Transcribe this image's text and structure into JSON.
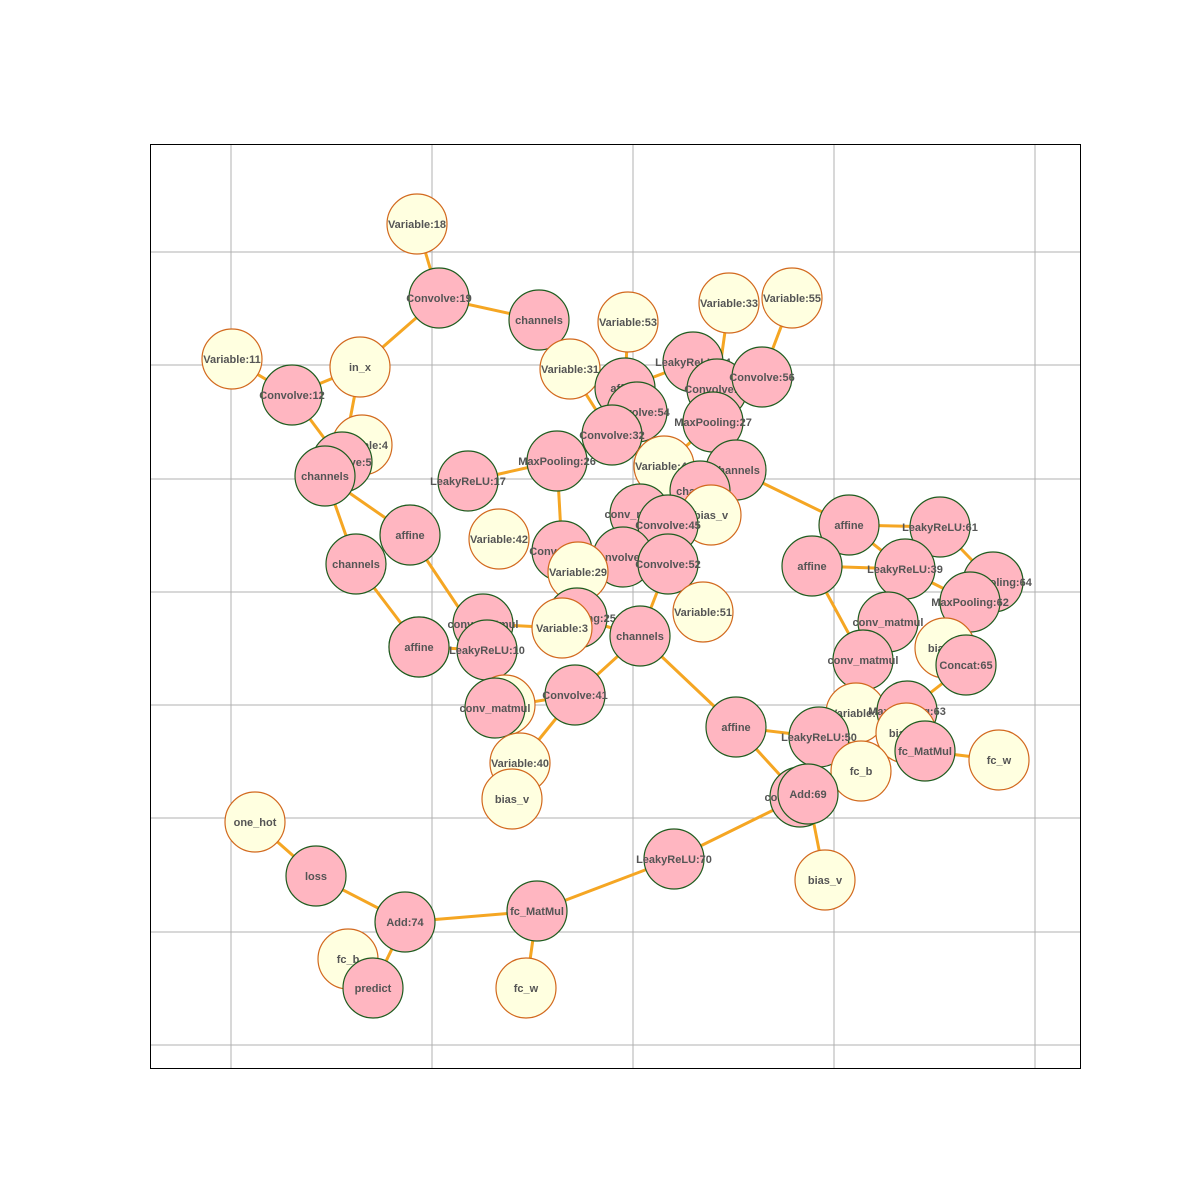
{
  "graph": {
    "colors": {
      "edge": "#f5a623",
      "op_fill": "#ffb6c1",
      "op_stroke": "#1e5c1e",
      "var_fill": "#ffffe0",
      "var_stroke": "#d2691e",
      "grid": "#b0b0b0",
      "frame": "#000000",
      "label": "#555555"
    },
    "node_kinds": [
      "op",
      "var"
    ],
    "nodes": [
      {
        "id": "v18",
        "label": "Variable:18",
        "kind": "var"
      },
      {
        "id": "c19",
        "label": "Convolve:19",
        "kind": "op"
      },
      {
        "id": "ch_a",
        "label": "channels",
        "kind": "op"
      },
      {
        "id": "inx",
        "label": "in_x",
        "kind": "var"
      },
      {
        "id": "v11",
        "label": "Variable:11",
        "kind": "var"
      },
      {
        "id": "c12",
        "label": "Convolve:12",
        "kind": "op"
      },
      {
        "id": "v4",
        "label": "Variable:4",
        "kind": "var"
      },
      {
        "id": "c5",
        "label": "Convolve:5",
        "kind": "op"
      },
      {
        "id": "ch_b",
        "label": "channels",
        "kind": "op"
      },
      {
        "id": "aff_a",
        "label": "affine",
        "kind": "op"
      },
      {
        "id": "ch_c",
        "label": "channels",
        "kind": "op"
      },
      {
        "id": "aff_b",
        "label": "affine",
        "kind": "op"
      },
      {
        "id": "lr17",
        "label": "LeakyReLU:17",
        "kind": "op"
      },
      {
        "id": "v42",
        "label": "Variable:42",
        "kind": "var"
      },
      {
        "id": "mp26",
        "label": "MaxPooling:26",
        "kind": "op"
      },
      {
        "id": "v53",
        "label": "Variable:53",
        "kind": "var"
      },
      {
        "id": "v31",
        "label": "Variable:31",
        "kind": "var"
      },
      {
        "id": "aff_c",
        "label": "affine",
        "kind": "op"
      },
      {
        "id": "c54",
        "label": "Convolve:54",
        "kind": "op"
      },
      {
        "id": "c32",
        "label": "Convolve:32",
        "kind": "op"
      },
      {
        "id": "v33",
        "label": "Variable:33",
        "kind": "var"
      },
      {
        "id": "v55",
        "label": "Variable:55",
        "kind": "var"
      },
      {
        "id": "lr24",
        "label": "LeakyReLU:24",
        "kind": "op"
      },
      {
        "id": "c34",
        "label": "Convolve:34",
        "kind": "op"
      },
      {
        "id": "c56",
        "label": "Convolve:56",
        "kind": "op"
      },
      {
        "id": "mp27",
        "label": "MaxPooling:27",
        "kind": "op"
      },
      {
        "id": "v44",
        "label": "Variable:44",
        "kind": "var"
      },
      {
        "id": "ch_d",
        "label": "channels",
        "kind": "op"
      },
      {
        "id": "ch_e",
        "label": "channels",
        "kind": "op"
      },
      {
        "id": "bias_a",
        "label": "bias_v",
        "kind": "var"
      },
      {
        "id": "cm_a",
        "label": "conv_matmul",
        "kind": "op"
      },
      {
        "id": "c45",
        "label": "Convolve:45",
        "kind": "op"
      },
      {
        "id": "c43",
        "label": "Convolve:43",
        "kind": "op"
      },
      {
        "id": "c30",
        "label": "Convolve:30",
        "kind": "op"
      },
      {
        "id": "c52",
        "label": "Convolve:52",
        "kind": "op"
      },
      {
        "id": "v29",
        "label": "Variable:29",
        "kind": "var"
      },
      {
        "id": "v51",
        "label": "Variable:51",
        "kind": "var"
      },
      {
        "id": "mp25",
        "label": "MaxPooling:25",
        "kind": "op"
      },
      {
        "id": "v3",
        "label": "Variable:3",
        "kind": "var"
      },
      {
        "id": "ch_f",
        "label": "channels",
        "kind": "op"
      },
      {
        "id": "cm_b",
        "label": "conv_matmul",
        "kind": "op"
      },
      {
        "id": "lr10",
        "label": "LeakyReLU:10",
        "kind": "op"
      },
      {
        "id": "aff_d",
        "label": "affine",
        "kind": "op"
      },
      {
        "id": "bias_b",
        "label": "bias_",
        "kind": "var"
      },
      {
        "id": "cm_c",
        "label": "conv_matmul",
        "kind": "op"
      },
      {
        "id": "c41",
        "label": "Convolve:41",
        "kind": "op"
      },
      {
        "id": "v40",
        "label": "Variable:40",
        "kind": "var"
      },
      {
        "id": "bias_c",
        "label": "bias_v",
        "kind": "var"
      },
      {
        "id": "aff_e",
        "label": "affine",
        "kind": "op"
      },
      {
        "id": "lr61",
        "label": "LeakyReLU:61",
        "kind": "op"
      },
      {
        "id": "aff_f",
        "label": "affine",
        "kind": "op"
      },
      {
        "id": "lr39",
        "label": "LeakyReLU:39",
        "kind": "op"
      },
      {
        "id": "mp64",
        "label": "MaxPooling:64",
        "kind": "op"
      },
      {
        "id": "mp62",
        "label": "MaxPooling:62",
        "kind": "op"
      },
      {
        "id": "cm_d",
        "label": "conv_matmul",
        "kind": "op"
      },
      {
        "id": "bias_d",
        "label": "bias_v",
        "kind": "var"
      },
      {
        "id": "cm_e",
        "label": "conv_matmul",
        "kind": "op"
      },
      {
        "id": "concat65",
        "label": "Concat:65",
        "kind": "op"
      },
      {
        "id": "vx",
        "label": "Variable:6",
        "kind": "var"
      },
      {
        "id": "mp63",
        "label": "MaxPooling:63",
        "kind": "op"
      },
      {
        "id": "bias_e",
        "label": "bias_v",
        "kind": "var"
      },
      {
        "id": "aff_g",
        "label": "affine",
        "kind": "op"
      },
      {
        "id": "lr50",
        "label": "LeakyReLU:50",
        "kind": "op"
      },
      {
        "id": "fcmm_a",
        "label": "fc_MatMul",
        "kind": "op"
      },
      {
        "id": "fcw_a",
        "label": "fc_w",
        "kind": "var"
      },
      {
        "id": "fcb_a",
        "label": "fc_b",
        "kind": "var"
      },
      {
        "id": "cm_f",
        "label": "conv_matmul",
        "kind": "op"
      },
      {
        "id": "add69",
        "label": "Add:69",
        "kind": "op"
      },
      {
        "id": "bias_f",
        "label": "bias_v",
        "kind": "var"
      },
      {
        "id": "lr70",
        "label": "LeakyReLU:70",
        "kind": "op"
      },
      {
        "id": "onehot",
        "label": "one_hot",
        "kind": "var"
      },
      {
        "id": "loss",
        "label": "loss",
        "kind": "op"
      },
      {
        "id": "add74",
        "label": "Add:74",
        "kind": "op"
      },
      {
        "id": "fcmm_b",
        "label": "fc_MatMul",
        "kind": "op"
      },
      {
        "id": "fcb_b",
        "label": "fc_b",
        "kind": "var"
      },
      {
        "id": "predict",
        "label": "predict",
        "kind": "op"
      },
      {
        "id": "fcw_b",
        "label": "fc_w",
        "kind": "var"
      }
    ],
    "edges": [
      [
        "v18",
        "c19"
      ],
      [
        "c19",
        "ch_a"
      ],
      [
        "c19",
        "inx"
      ],
      [
        "inx",
        "c12"
      ],
      [
        "v11",
        "c12"
      ],
      [
        "c12",
        "c5"
      ],
      [
        "inx",
        "c5"
      ],
      [
        "v4",
        "c5"
      ],
      [
        "c5",
        "ch_b"
      ],
      [
        "ch_b",
        "aff_a"
      ],
      [
        "ch_b",
        "ch_c"
      ],
      [
        "ch_c",
        "aff_b"
      ],
      [
        "aff_a",
        "lr10"
      ],
      [
        "aff_b",
        "lr10"
      ],
      [
        "lr17",
        "mp26"
      ],
      [
        "mp26",
        "c32"
      ],
      [
        "mp26",
        "c43"
      ],
      [
        "c43",
        "v29"
      ],
      [
        "v53",
        "aff_c"
      ],
      [
        "v31",
        "c32"
      ],
      [
        "aff_c",
        "lr24"
      ],
      [
        "c54",
        "c32"
      ],
      [
        "v33",
        "c34"
      ],
      [
        "v55",
        "c56"
      ],
      [
        "lr24",
        "c34"
      ],
      [
        "c56",
        "mp27"
      ],
      [
        "c34",
        "ch_d"
      ],
      [
        "mp27",
        "ch_d"
      ],
      [
        "v44",
        "mp27"
      ],
      [
        "ch_d",
        "ch_e"
      ],
      [
        "ch_e",
        "bias_a"
      ],
      [
        "ch_e",
        "cm_a"
      ],
      [
        "cm_a",
        "c45"
      ],
      [
        "c45",
        "c30"
      ],
      [
        "c30",
        "c52"
      ],
      [
        "c52",
        "ch_f"
      ],
      [
        "c30",
        "mp25"
      ],
      [
        "mp25",
        "v3"
      ],
      [
        "v29",
        "mp25"
      ],
      [
        "v3",
        "cm_b"
      ],
      [
        "cm_b",
        "lr10"
      ],
      [
        "mp25",
        "ch_f"
      ],
      [
        "ch_f",
        "c41"
      ],
      [
        "c41",
        "cm_c"
      ],
      [
        "c41",
        "v40"
      ],
      [
        "v40",
        "bias_c"
      ],
      [
        "cm_c",
        "bias_b"
      ],
      [
        "ch_f",
        "aff_g"
      ],
      [
        "ch_d",
        "aff_e"
      ],
      [
        "aff_e",
        "lr61"
      ],
      [
        "lr61",
        "mp64"
      ],
      [
        "aff_f",
        "lr39"
      ],
      [
        "lr39",
        "aff_e"
      ],
      [
        "aff_f",
        "cm_e"
      ],
      [
        "lr39",
        "mp62"
      ],
      [
        "mp64",
        "mp62"
      ],
      [
        "mp62",
        "concat65"
      ],
      [
        "cm_d",
        "cm_e"
      ],
      [
        "bias_d",
        "concat65"
      ],
      [
        "concat65",
        "mp63"
      ],
      [
        "cm_e",
        "vx"
      ],
      [
        "mp63",
        "fcmm_a"
      ],
      [
        "vx",
        "bias_e"
      ],
      [
        "fcmm_a",
        "fcw_a"
      ],
      [
        "lr50",
        "aff_g"
      ],
      [
        "lr50",
        "fcb_a"
      ],
      [
        "aff_g",
        "cm_f"
      ],
      [
        "lr50",
        "add69"
      ],
      [
        "add69",
        "bias_f"
      ],
      [
        "add69",
        "cm_f"
      ],
      [
        "cm_f",
        "lr70"
      ],
      [
        "lr70",
        "fcmm_b"
      ],
      [
        "fcmm_b",
        "add74"
      ],
      [
        "fcmm_b",
        "fcw_b"
      ],
      [
        "add74",
        "loss"
      ],
      [
        "loss",
        "onehot"
      ],
      [
        "add74",
        "predict"
      ],
      [
        "predict",
        "fcb_b"
      ]
    ]
  }
}
